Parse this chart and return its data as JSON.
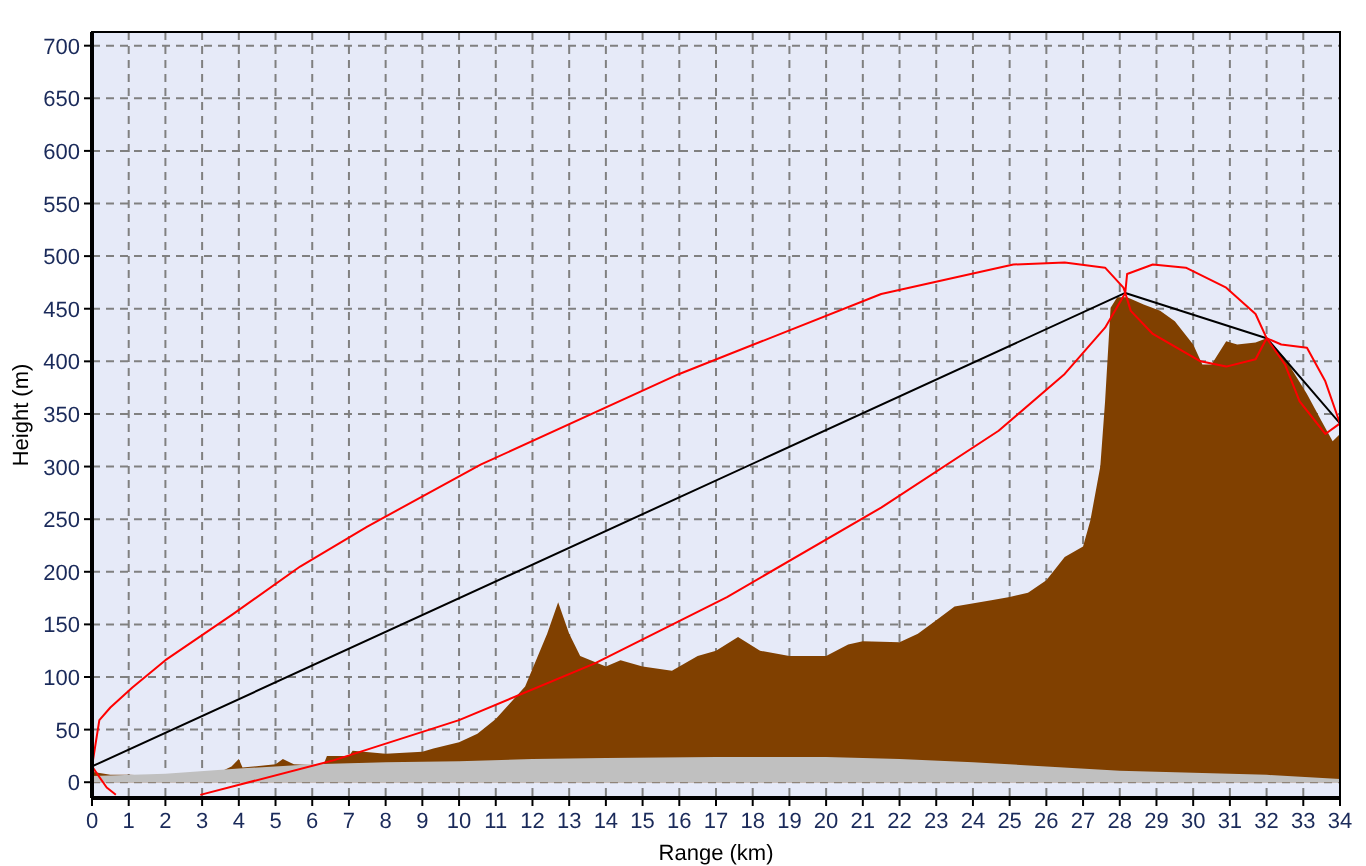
{
  "chart_data": {
    "type": "area",
    "xlabel": "Range (km)",
    "ylabel": "Height (m)",
    "xlim": [
      0,
      34
    ],
    "ylim": [
      -15,
      713
    ],
    "xticks": [
      0,
      1,
      2,
      3,
      4,
      5,
      6,
      7,
      8,
      9,
      10,
      11,
      12,
      13,
      14,
      15,
      16,
      17,
      18,
      19,
      20,
      21,
      22,
      23,
      24,
      25,
      26,
      27,
      28,
      29,
      30,
      31,
      32,
      33,
      34
    ],
    "yticks": [
      0,
      50,
      100,
      150,
      200,
      250,
      300,
      350,
      400,
      450,
      500,
      550,
      600,
      650,
      700
    ],
    "grid": true,
    "marker": "none",
    "line_style": "solid",
    "series": [
      {
        "color": "#804000",
        "x": [
          0,
          0.5,
          1,
          1.8,
          2.5,
          3.5,
          3.8,
          4,
          4.1,
          5,
          5.2,
          5.5,
          6.3,
          6.4,
          7,
          7.1,
          8,
          9,
          9.3,
          10,
          10.5,
          11,
          11.8,
          12.4,
          12.7,
          13,
          13.3,
          14,
          14.4,
          15,
          15.8,
          16.5,
          17,
          17.6,
          18.2,
          19,
          20,
          20.6,
          21,
          22,
          22.5,
          23,
          23.5,
          24.5,
          25,
          25.5,
          26,
          26.5,
          27,
          27.2,
          27.47,
          27.6,
          27.75,
          27.93,
          28.2,
          28.65,
          29.1,
          29.5,
          30,
          30.25,
          30.5,
          30.9,
          31.2,
          31.7,
          32,
          32.5,
          33.1,
          33.5,
          33.8,
          34
        ],
        "values": [
          10,
          7,
          7,
          6,
          8,
          10,
          15,
          22,
          14,
          17,
          22,
          17,
          16,
          25,
          25,
          30,
          27,
          29,
          32,
          38,
          46,
          60,
          91,
          141,
          171,
          141,
          120,
          110,
          116,
          110,
          106,
          120,
          125,
          138,
          125,
          120,
          120,
          131,
          134,
          133,
          141,
          154,
          167,
          173,
          176,
          180,
          192,
          214,
          224,
          249,
          300,
          362,
          451,
          461,
          461,
          454,
          448,
          438,
          416,
          397,
          397,
          419,
          416,
          418,
          422,
          403,
          369,
          343,
          324,
          331
        ]
      },
      {
        "color": "#c0c0c0",
        "x": [
          0,
          2,
          4,
          6,
          8,
          10,
          12,
          14,
          17,
          20,
          22,
          24,
          26,
          28,
          30,
          32,
          34
        ],
        "values": [
          6,
          8,
          13,
          17,
          19,
          20,
          22,
          23,
          24,
          24,
          22,
          19,
          15,
          11,
          9,
          7,
          3
        ]
      },
      {
        "type": "line",
        "color": "#000000",
        "x": [
          0,
          28.15,
          32,
          34
        ],
        "values": [
          15,
          465,
          422,
          341
        ]
      },
      {
        "type": "line",
        "color": "#ff0000",
        "x": [
          0,
          0.2,
          0.5,
          1.1,
          2,
          3.85,
          5.67,
          7.5,
          10.6,
          16,
          21.5,
          25.1,
          26.5,
          27.6,
          28.1,
          28.15,
          28.2,
          28.9,
          29.8,
          30.9,
          31.7,
          32,
          32.4,
          33.1,
          33.6,
          34,
          33.6,
          32.9,
          32.5,
          32,
          31.7,
          30.9,
          30.2,
          28.9,
          28.3,
          28.15,
          27.6,
          26.5,
          24.7,
          21.5,
          17.3,
          13.7,
          10,
          6.6,
          2.95,
          null,
          0.65,
          0.4,
          0
        ],
        "values": [
          15,
          59,
          71,
          90,
          116,
          160,
          205,
          243,
          302,
          388,
          464,
          492,
          494,
          489,
          470,
          465,
          483,
          492,
          489,
          470,
          445,
          422,
          416,
          413,
          381,
          341,
          331,
          362,
          397,
          422,
          402,
          395,
          400,
          426,
          448,
          465,
          432,
          388,
          334,
          261,
          176,
          113,
          59,
          21,
          -12,
          null,
          -12,
          -5,
          15
        ]
      }
    ]
  }
}
